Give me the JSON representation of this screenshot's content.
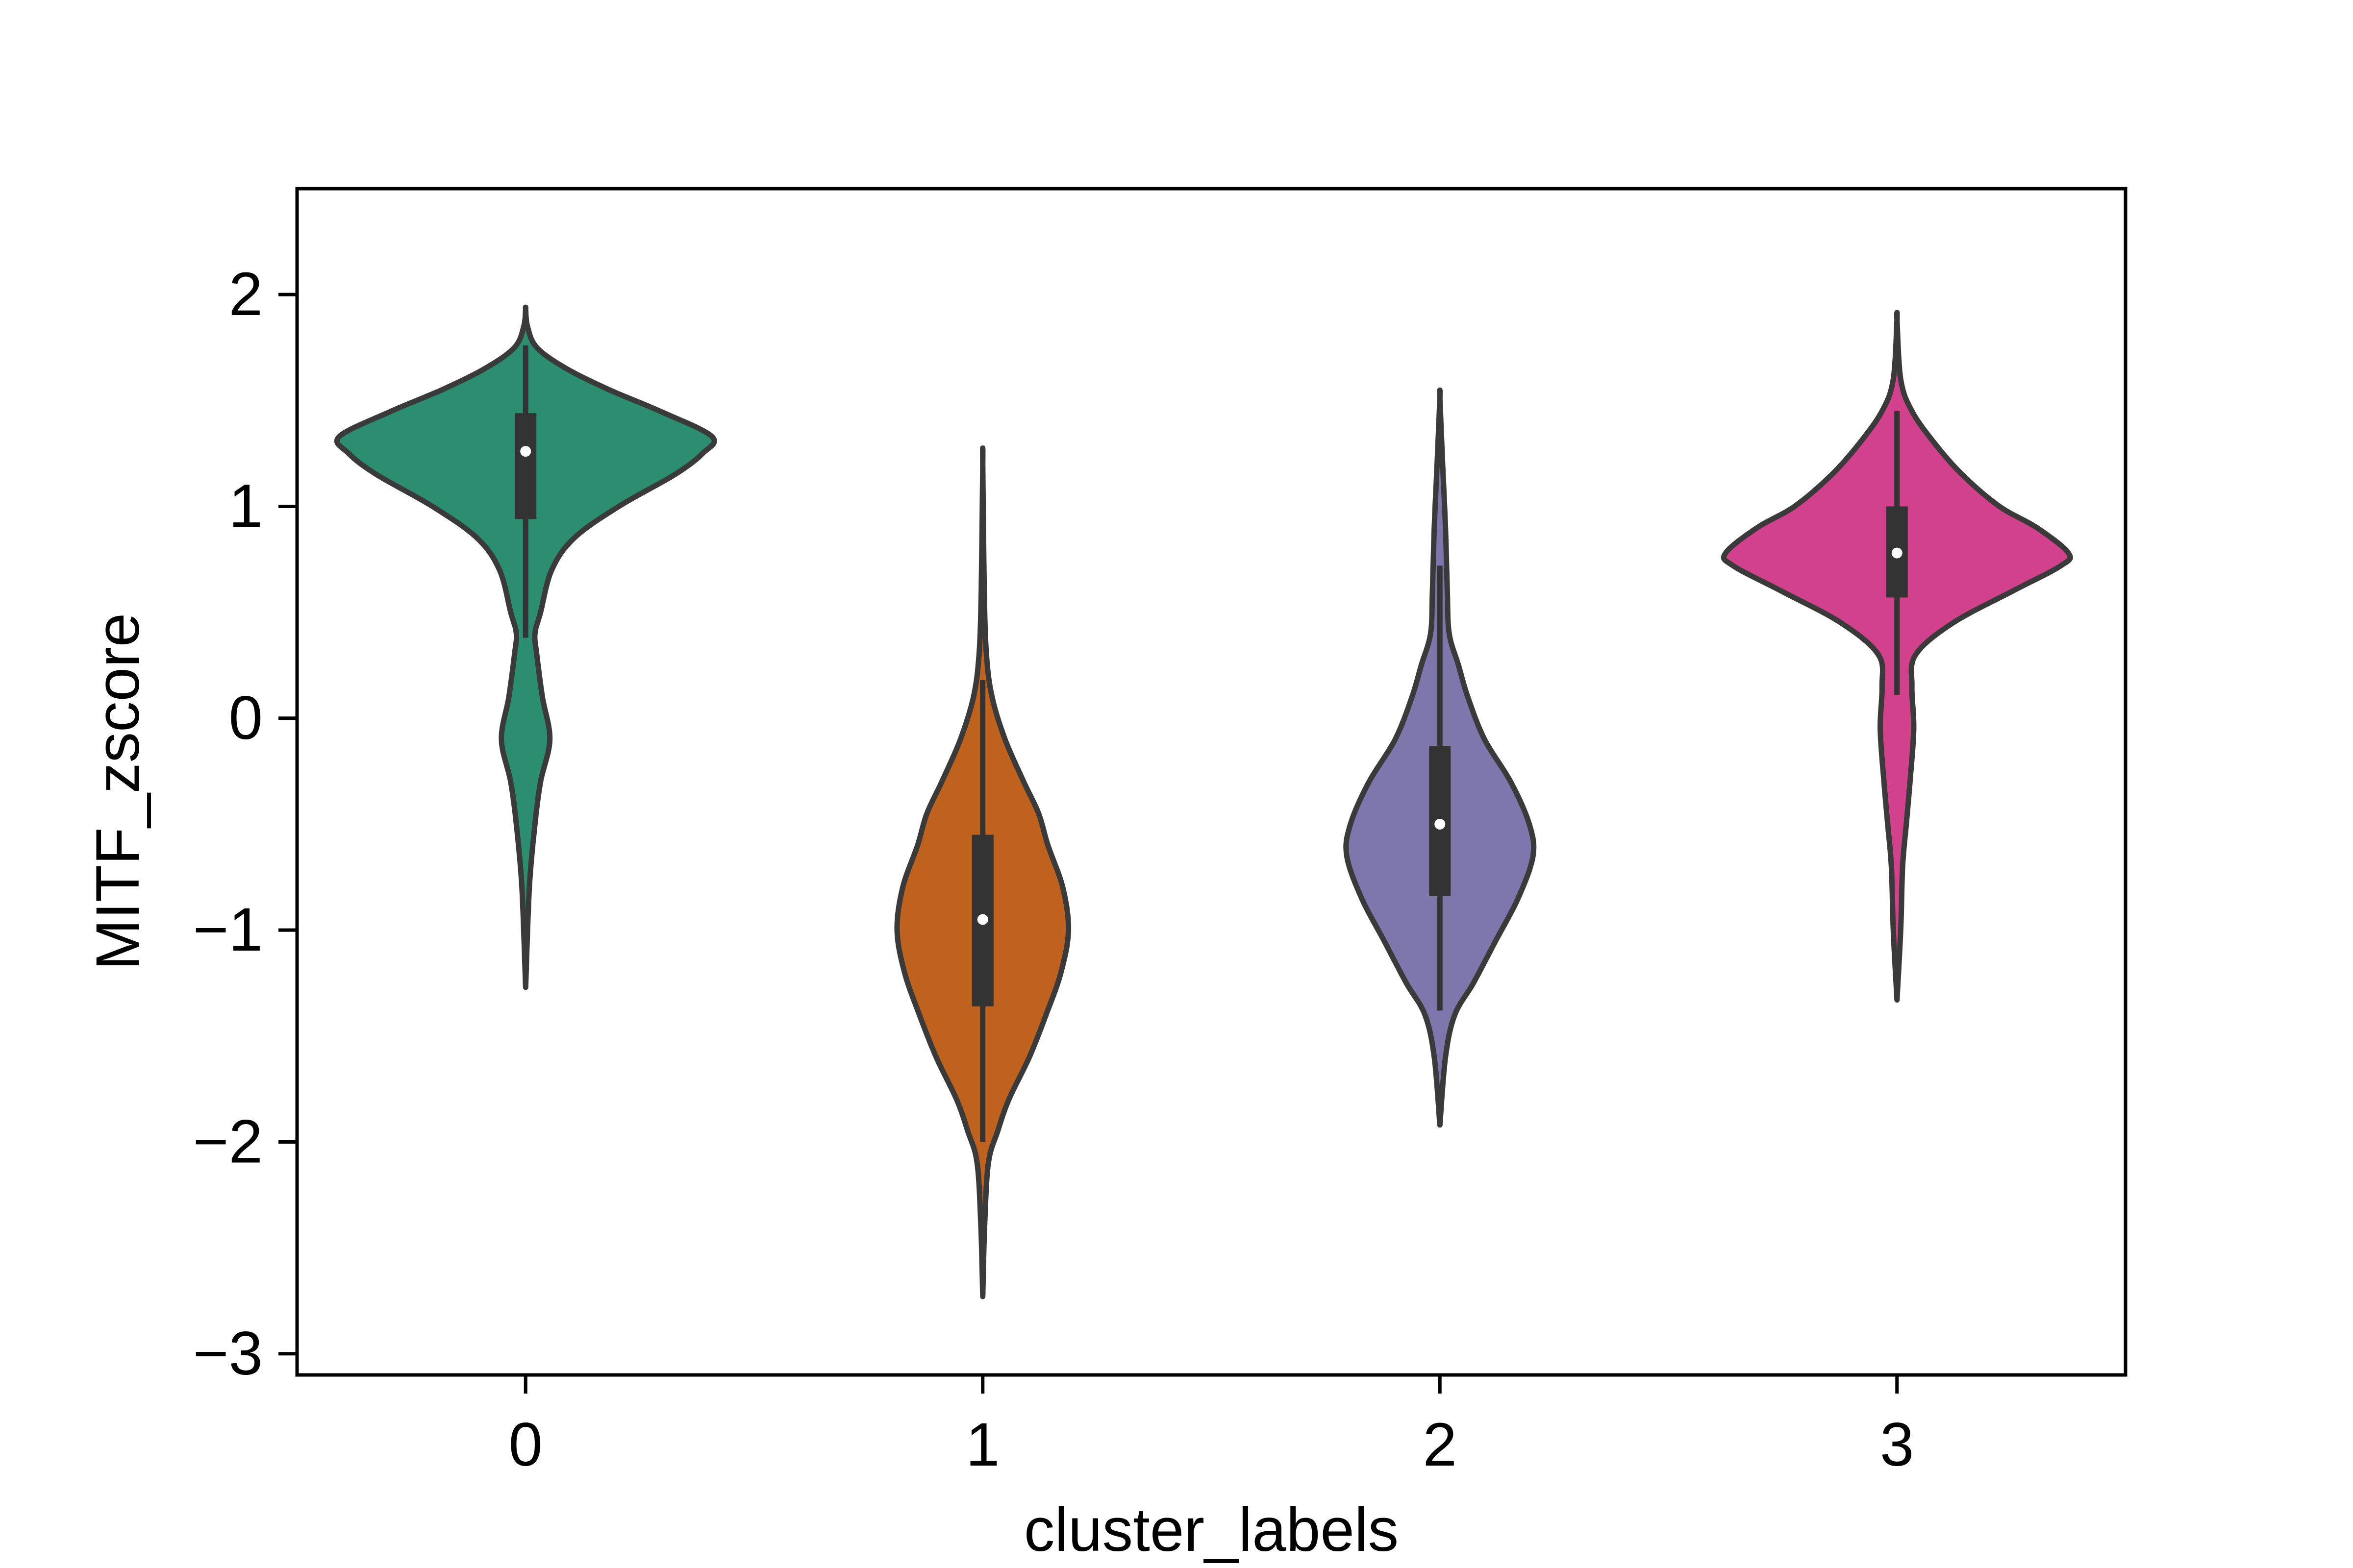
{
  "chart_data": {
    "type": "violin",
    "xlabel": "cluster_labels",
    "ylabel": "MITF_zscore",
    "xlim": [
      -0.5,
      3.5
    ],
    "ylim": [
      -3.1,
      2.5
    ],
    "yticks": [
      -3,
      -2,
      -1,
      0,
      1,
      2
    ],
    "ytick_labels": [
      "−3",
      "−2",
      "−1",
      "0",
      "1",
      "2"
    ],
    "grid": false,
    "legend": "none",
    "categories": [
      "0",
      "1",
      "2",
      "3"
    ],
    "series": [
      {
        "category": "0",
        "color": "#2b8e6f",
        "min": -1.27,
        "q1": 0.94,
        "median": 1.26,
        "q3": 1.44,
        "max": 1.93,
        "whisker_low": 0.38,
        "whisker_high": 1.76,
        "density": [
          [
            -1.27,
            0.0
          ],
          [
            -0.8,
            0.02
          ],
          [
            -0.5,
            0.05
          ],
          [
            -0.3,
            0.08
          ],
          [
            -0.1,
            0.13
          ],
          [
            0.1,
            0.09
          ],
          [
            0.3,
            0.06
          ],
          [
            0.4,
            0.05
          ],
          [
            0.5,
            0.08
          ],
          [
            0.7,
            0.14
          ],
          [
            0.85,
            0.26
          ],
          [
            1.0,
            0.5
          ],
          [
            1.15,
            0.8
          ],
          [
            1.25,
            0.95
          ],
          [
            1.33,
            1.0
          ],
          [
            1.45,
            0.72
          ],
          [
            1.55,
            0.45
          ],
          [
            1.65,
            0.22
          ],
          [
            1.75,
            0.06
          ],
          [
            1.85,
            0.01
          ],
          [
            1.93,
            0.0
          ]
        ]
      },
      {
        "category": "1",
        "color": "#bf621e",
        "min": -2.73,
        "q1": -1.36,
        "median": -0.95,
        "q3": -0.55,
        "max": 1.2,
        "whisker_low": -2.0,
        "whisker_high": 0.18,
        "density": [
          [
            -2.73,
            0.0
          ],
          [
            -2.4,
            0.01
          ],
          [
            -2.1,
            0.03
          ],
          [
            -1.95,
            0.08
          ],
          [
            -1.8,
            0.14
          ],
          [
            -1.6,
            0.25
          ],
          [
            -1.4,
            0.34
          ],
          [
            -1.2,
            0.42
          ],
          [
            -1.0,
            0.46
          ],
          [
            -0.8,
            0.43
          ],
          [
            -0.6,
            0.35
          ],
          [
            -0.45,
            0.3
          ],
          [
            -0.3,
            0.22
          ],
          [
            -0.1,
            0.12
          ],
          [
            0.1,
            0.05
          ],
          [
            0.3,
            0.02
          ],
          [
            0.6,
            0.008
          ],
          [
            1.2,
            0.0
          ]
        ]
      },
      {
        "category": "2",
        "color": "#7d77ab",
        "min": -1.92,
        "q1": -0.84,
        "median": -0.5,
        "q3": -0.13,
        "max": 1.51,
        "whisker_low": -1.38,
        "whisker_high": 0.72,
        "density": [
          [
            -1.92,
            0.0
          ],
          [
            -1.6,
            0.03
          ],
          [
            -1.4,
            0.08
          ],
          [
            -1.25,
            0.18
          ],
          [
            -1.05,
            0.3
          ],
          [
            -0.85,
            0.42
          ],
          [
            -0.65,
            0.5
          ],
          [
            -0.5,
            0.48
          ],
          [
            -0.3,
            0.38
          ],
          [
            -0.1,
            0.24
          ],
          [
            0.1,
            0.15
          ],
          [
            0.25,
            0.1
          ],
          [
            0.4,
            0.05
          ],
          [
            0.6,
            0.04
          ],
          [
            0.9,
            0.03
          ],
          [
            1.2,
            0.015
          ],
          [
            1.51,
            0.0
          ]
        ]
      },
      {
        "category": "3",
        "color": "#d1418c",
        "min": -1.33,
        "q1": 0.57,
        "median": 0.78,
        "q3": 1.0,
        "max": 1.88,
        "whisker_low": 0.11,
        "whisker_high": 1.45,
        "density": [
          [
            -1.33,
            0.0
          ],
          [
            -1.0,
            0.02
          ],
          [
            -0.7,
            0.03
          ],
          [
            -0.5,
            0.05
          ],
          [
            -0.3,
            0.07
          ],
          [
            -0.05,
            0.09
          ],
          [
            0.15,
            0.08
          ],
          [
            0.3,
            0.1
          ],
          [
            0.45,
            0.3
          ],
          [
            0.6,
            0.62
          ],
          [
            0.72,
            0.88
          ],
          [
            0.78,
            0.92
          ],
          [
            0.9,
            0.75
          ],
          [
            1.0,
            0.55
          ],
          [
            1.15,
            0.35
          ],
          [
            1.3,
            0.2
          ],
          [
            1.45,
            0.08
          ],
          [
            1.6,
            0.02
          ],
          [
            1.88,
            0.0
          ]
        ]
      }
    ]
  }
}
